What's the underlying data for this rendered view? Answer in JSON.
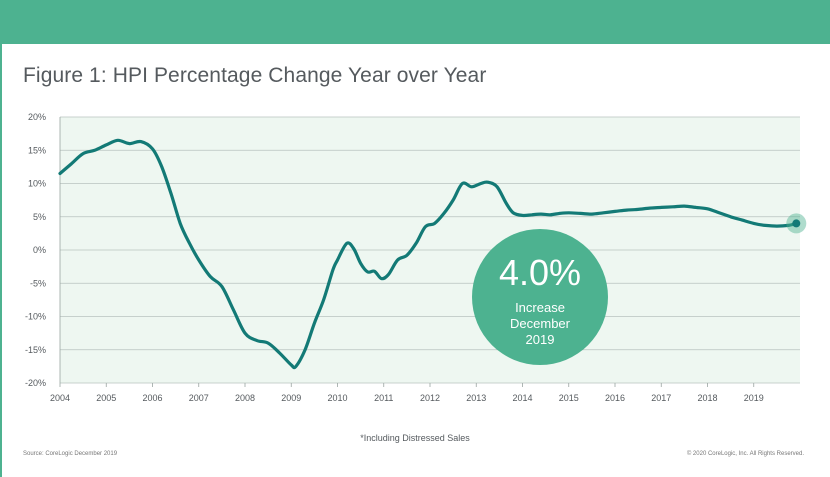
{
  "title": "Figure 1: HPI Percentage Change Year over Year",
  "footnote": "*Including Distressed Sales",
  "source": "Source: CoreLogic December 2019",
  "copyright": "© 2020 CoreLogic, Inc. All Rights Reserved.",
  "colors": {
    "banner": "#4db290",
    "line": "#137a76",
    "plot_bg": "#eef7f1",
    "callout": "#4db290"
  },
  "callout": {
    "value": "4.0%",
    "line1": "Increase",
    "line2": "December",
    "line3": "2019"
  },
  "chart_data": {
    "type": "line",
    "title": "Figure 1: HPI Percentage Change Year over Year",
    "xlabel": "",
    "ylabel": "",
    "xlim": [
      2004,
      2020
    ],
    "ylim": [
      -20,
      20
    ],
    "x_ticks": [
      "2004",
      "2005",
      "2006",
      "2007",
      "2008",
      "2009",
      "2010",
      "2011",
      "2012",
      "2013",
      "2014",
      "2015",
      "2016",
      "2017",
      "2018",
      "2019"
    ],
    "y_ticks": [
      "20%",
      "15%",
      "10%",
      "5%",
      "0%",
      "-5%",
      "-10%",
      "-15%",
      "-20%"
    ],
    "y_tick_values": [
      20,
      15,
      10,
      5,
      0,
      -5,
      -10,
      -15,
      -20
    ],
    "grid": "horizontal",
    "series": [
      {
        "x": [
          2004.0,
          2004.25,
          2004.5,
          2004.75,
          2005.0,
          2005.25,
          2005.5,
          2005.75,
          2006.0,
          2006.2,
          2006.4,
          2006.6,
          2006.8,
          2007.0,
          2007.25,
          2007.5,
          2007.75,
          2008.0,
          2008.25,
          2008.5,
          2008.75,
          2009.0,
          2009.1,
          2009.3,
          2009.5,
          2009.7,
          2009.9,
          2010.0,
          2010.2,
          2010.35,
          2010.5,
          2010.65,
          2010.8,
          2010.95,
          2011.1,
          2011.3,
          2011.5,
          2011.7,
          2011.9,
          2012.1,
          2012.3,
          2012.5,
          2012.7,
          2012.9,
          2013.1,
          2013.25,
          2013.45,
          2013.65,
          2013.8,
          2014.0,
          2014.2,
          2014.4,
          2014.6,
          2014.8,
          2015.0,
          2015.25,
          2015.5,
          2015.75,
          2016.0,
          2016.25,
          2016.5,
          2016.75,
          2017.0,
          2017.25,
          2017.5,
          2017.75,
          2018.0,
          2018.25,
          2018.5,
          2018.75,
          2019.0,
          2019.25,
          2019.5,
          2019.75,
          2019.92
        ],
        "values": [
          11.5,
          13.0,
          14.5,
          15.0,
          15.8,
          16.5,
          16.0,
          16.3,
          15.2,
          12.5,
          8.5,
          4.0,
          1.0,
          -1.5,
          -4.0,
          -5.5,
          -9.0,
          -12.5,
          -13.6,
          -14.0,
          -15.5,
          -17.3,
          -17.5,
          -15.0,
          -11.0,
          -7.5,
          -3.0,
          -1.5,
          1.0,
          0.2,
          -2.0,
          -3.3,
          -3.2,
          -4.3,
          -3.7,
          -1.5,
          -0.8,
          1.0,
          3.5,
          4.0,
          5.5,
          7.5,
          10.0,
          9.5,
          10.0,
          10.2,
          9.5,
          7.0,
          5.6,
          5.2,
          5.3,
          5.4,
          5.3,
          5.5,
          5.6,
          5.5,
          5.4,
          5.6,
          5.8,
          6.0,
          6.1,
          6.3,
          6.4,
          6.5,
          6.6,
          6.4,
          6.2,
          5.6,
          5.0,
          4.5,
          4.0,
          3.7,
          3.6,
          3.7,
          4.0
        ]
      }
    ],
    "annotation": {
      "x": 2019.92,
      "y": 4.0,
      "text": "4.0%"
    }
  }
}
